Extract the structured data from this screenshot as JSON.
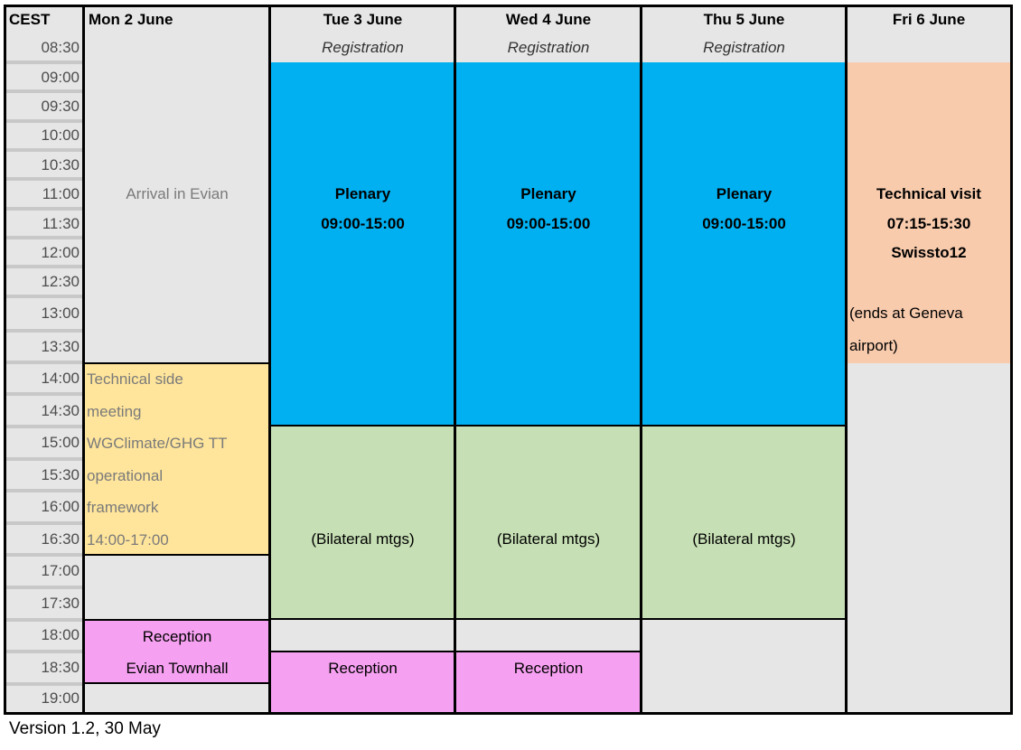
{
  "header": {
    "time_col": "CEST",
    "days": [
      {
        "title": "Mon 2 June",
        "subtitle": ""
      },
      {
        "title": "Tue 3 June",
        "subtitle": "Registration"
      },
      {
        "title": "Wed 4 June",
        "subtitle": "Registration"
      },
      {
        "title": "Thu 5 June",
        "subtitle": "Registration"
      },
      {
        "title": "Fri 6 June",
        "subtitle": ""
      }
    ]
  },
  "times": [
    "08:30",
    "09:00",
    "09:30",
    "10:00",
    "10:30",
    "11:00",
    "11:30",
    "12:00",
    "12:30",
    "13:00",
    "13:30",
    "14:00",
    "14:30",
    "15:00",
    "15:30",
    "16:00",
    "16:30",
    "17:00",
    "17:30",
    "18:00",
    "18:30",
    "19:00"
  ],
  "monday": {
    "arrival": "Arrival in Evian",
    "side_meeting_lines": [
      "Technical side",
      "meeting",
      "WGClimate/GHG TT",
      "operational",
      "framework",
      "14:00-17:00"
    ],
    "reception_lines": [
      "Reception",
      "Evian Townhall"
    ]
  },
  "plenary": {
    "title": "Plenary",
    "time": "09:00-15:00"
  },
  "bilateral": "(Bilateral mtgs)",
  "reception": "Reception",
  "friday": {
    "title": "Technical visit",
    "time": "07:15-15:30",
    "place": "Swissto12",
    "note_lines": [
      "(ends at Geneva",
      "airport)"
    ]
  },
  "colors": {
    "plenary": "#00b0f0",
    "bilateral": "#c6dfb4",
    "reception": "#f5a0f0",
    "side_meeting": "#ffe59b",
    "technical_visit": "#f8cbad",
    "background": "#e6e6e6"
  },
  "footer": "Version 1.2, 30 May"
}
